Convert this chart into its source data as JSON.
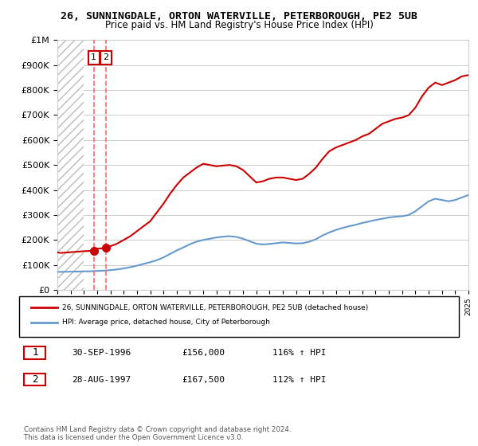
{
  "title": "26, SUNNINGDALE, ORTON WATERVILLE, PETERBOROUGH, PE2 5UB",
  "subtitle": "Price paid vs. HM Land Registry's House Price Index (HPI)",
  "legend_line1": "26, SUNNINGDALE, ORTON WATERVILLE, PETERBOROUGH, PE2 5UB (detached house)",
  "legend_line2": "HPI: Average price, detached house, City of Peterborough",
  "footer": "Contains HM Land Registry data © Crown copyright and database right 2024.\nThis data is licensed under the Open Government Licence v3.0.",
  "sale1_label": "1",
  "sale1_date": "30-SEP-1996",
  "sale1_price": "£156,000",
  "sale1_hpi": "116% ↑ HPI",
  "sale2_label": "2",
  "sale2_date": "28-AUG-1997",
  "sale2_price": "£167,500",
  "sale2_hpi": "112% ↑ HPI",
  "sale1_year": 1996.75,
  "sale2_year": 1997.67,
  "sale1_price_val": 156000,
  "sale2_price_val": 167500,
  "red_line_color": "#cc0000",
  "blue_line_color": "#6699cc",
  "hatch_color": "#cccccc",
  "dashed_color": "#ff6666",
  "ylim": [
    0,
    1000000
  ],
  "xlim": [
    1994,
    2025
  ],
  "background_color": "#ffffff",
  "plot_bg_color": "#f0f0f0",
  "hatch_end_year": 1996.0,
  "red_x": [
    1994.0,
    1994.25,
    1994.5,
    1994.75,
    1995.0,
    1995.25,
    1995.5,
    1995.75,
    1996.0,
    1996.25,
    1996.5,
    1996.75,
    1997.0,
    1997.25,
    1997.5,
    1997.67,
    1998.0,
    1998.5,
    1999.0,
    1999.5,
    2000.0,
    2000.5,
    2001.0,
    2001.5,
    2002.0,
    2002.5,
    2003.0,
    2003.5,
    2004.0,
    2004.5,
    2005.0,
    2005.5,
    2006.0,
    2006.5,
    2007.0,
    2007.5,
    2008.0,
    2008.5,
    2009.0,
    2009.5,
    2010.0,
    2010.5,
    2011.0,
    2011.5,
    2012.0,
    2012.5,
    2013.0,
    2013.5,
    2014.0,
    2014.5,
    2015.0,
    2015.5,
    2016.0,
    2016.5,
    2017.0,
    2017.5,
    2018.0,
    2018.5,
    2019.0,
    2019.5,
    2020.0,
    2020.5,
    2021.0,
    2021.5,
    2022.0,
    2022.5,
    2023.0,
    2023.5,
    2024.0,
    2024.5,
    2025.0
  ],
  "red_y": [
    150000,
    148000,
    149000,
    150000,
    151000,
    152000,
    153000,
    154000,
    155000,
    155500,
    156000,
    156000,
    165000,
    166000,
    167000,
    167500,
    175000,
    185000,
    200000,
    215000,
    235000,
    255000,
    275000,
    310000,
    345000,
    385000,
    420000,
    450000,
    470000,
    490000,
    505000,
    500000,
    495000,
    498000,
    500000,
    495000,
    480000,
    455000,
    430000,
    435000,
    445000,
    450000,
    450000,
    445000,
    440000,
    445000,
    465000,
    490000,
    525000,
    555000,
    570000,
    580000,
    590000,
    600000,
    615000,
    625000,
    645000,
    665000,
    675000,
    685000,
    690000,
    700000,
    730000,
    775000,
    810000,
    830000,
    820000,
    830000,
    840000,
    855000,
    860000
  ],
  "blue_x": [
    1994.0,
    1994.5,
    1995.0,
    1995.5,
    1996.0,
    1996.5,
    1997.0,
    1997.5,
    1998.0,
    1998.5,
    1999.0,
    1999.5,
    2000.0,
    2000.5,
    2001.0,
    2001.5,
    2002.0,
    2002.5,
    2003.0,
    2003.5,
    2004.0,
    2004.5,
    2005.0,
    2005.5,
    2006.0,
    2006.5,
    2007.0,
    2007.5,
    2008.0,
    2008.5,
    2009.0,
    2009.5,
    2010.0,
    2010.5,
    2011.0,
    2011.5,
    2012.0,
    2012.5,
    2013.0,
    2013.5,
    2014.0,
    2014.5,
    2015.0,
    2015.5,
    2016.0,
    2016.5,
    2017.0,
    2017.5,
    2018.0,
    2018.5,
    2019.0,
    2019.5,
    2020.0,
    2020.5,
    2021.0,
    2021.5,
    2022.0,
    2022.5,
    2023.0,
    2023.5,
    2024.0,
    2024.5,
    2025.0
  ],
  "blue_y": [
    72000,
    72500,
    73000,
    73500,
    74000,
    74500,
    76000,
    77000,
    79000,
    82000,
    86000,
    91000,
    97000,
    104000,
    111000,
    119000,
    130000,
    144000,
    158000,
    170000,
    183000,
    193000,
    200000,
    205000,
    210000,
    213000,
    215000,
    212000,
    205000,
    195000,
    185000,
    182000,
    184000,
    187000,
    190000,
    188000,
    186000,
    187000,
    193000,
    203000,
    218000,
    230000,
    240000,
    248000,
    255000,
    261000,
    268000,
    274000,
    280000,
    285000,
    290000,
    293000,
    295000,
    300000,
    315000,
    335000,
    355000,
    365000,
    360000,
    355000,
    360000,
    370000,
    380000
  ]
}
